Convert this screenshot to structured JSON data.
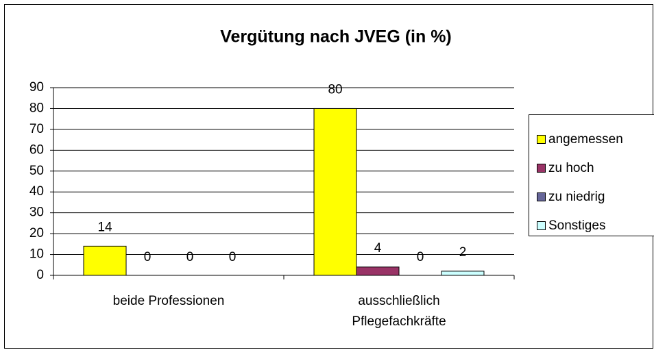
{
  "chart_data": {
    "type": "bar",
    "title": "Vergütung nach JVEG (in %)",
    "categories": [
      "beide Professionen",
      "ausschließlich Pflegefachkräfte"
    ],
    "series": [
      {
        "name": "angemessen",
        "color": "#ffff00",
        "values": [
          14,
          80
        ]
      },
      {
        "name": "zu hoch",
        "color": "#993366",
        "values": [
          0,
          4
        ]
      },
      {
        "name": "zu niedrig",
        "color": "#666699",
        "values": [
          0,
          0
        ]
      },
      {
        "name": "Sonstiges",
        "color": "#ccffff",
        "values": [
          0,
          2
        ]
      }
    ],
    "ylim": [
      0,
      90
    ],
    "yticks": [
      0,
      10,
      20,
      30,
      40,
      50,
      60,
      70,
      80,
      90
    ],
    "grid": true,
    "legend": "right",
    "data_labels": true
  }
}
